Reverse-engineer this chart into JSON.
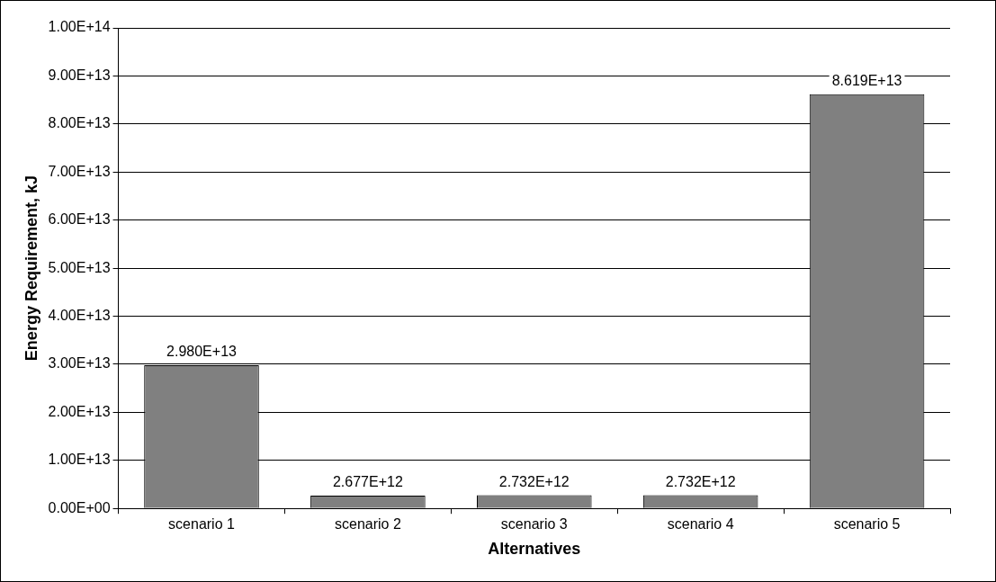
{
  "chart_data": {
    "type": "bar",
    "xlabel": "Alternatives",
    "ylabel": "Energy Requirement, kJ",
    "categories": [
      "scenario 1",
      "scenario 2",
      "scenario 3",
      "scenario 4",
      "scenario 5"
    ],
    "values": [
      29800000000000,
      2677000000000,
      2732000000000,
      2732000000000,
      86190000000000
    ],
    "value_labels": [
      "2.980E+13",
      "2.677E+12",
      "2.732E+12",
      "2.732E+12",
      "8.619E+13"
    ],
    "color": "#808080",
    "ylim": [
      0,
      100000000000000
    ],
    "yticks": [
      {
        "value": 0,
        "label": "0.00E+00"
      },
      {
        "value": 10000000000000,
        "label": "1.00E+13"
      },
      {
        "value": 20000000000000,
        "label": "2.00E+13"
      },
      {
        "value": 30000000000000,
        "label": "3.00E+13"
      },
      {
        "value": 40000000000000,
        "label": "4.00E+13"
      },
      {
        "value": 50000000000000,
        "label": "5.00E+13"
      },
      {
        "value": 60000000000000,
        "label": "6.00E+13"
      },
      {
        "value": 70000000000000,
        "label": "7.00E+13"
      },
      {
        "value": 80000000000000,
        "label": "8.00E+13"
      },
      {
        "value": 90000000000000,
        "label": "9.00E+13"
      },
      {
        "value": 100000000000000,
        "label": "1.00E+14"
      }
    ],
    "grid": "y"
  }
}
